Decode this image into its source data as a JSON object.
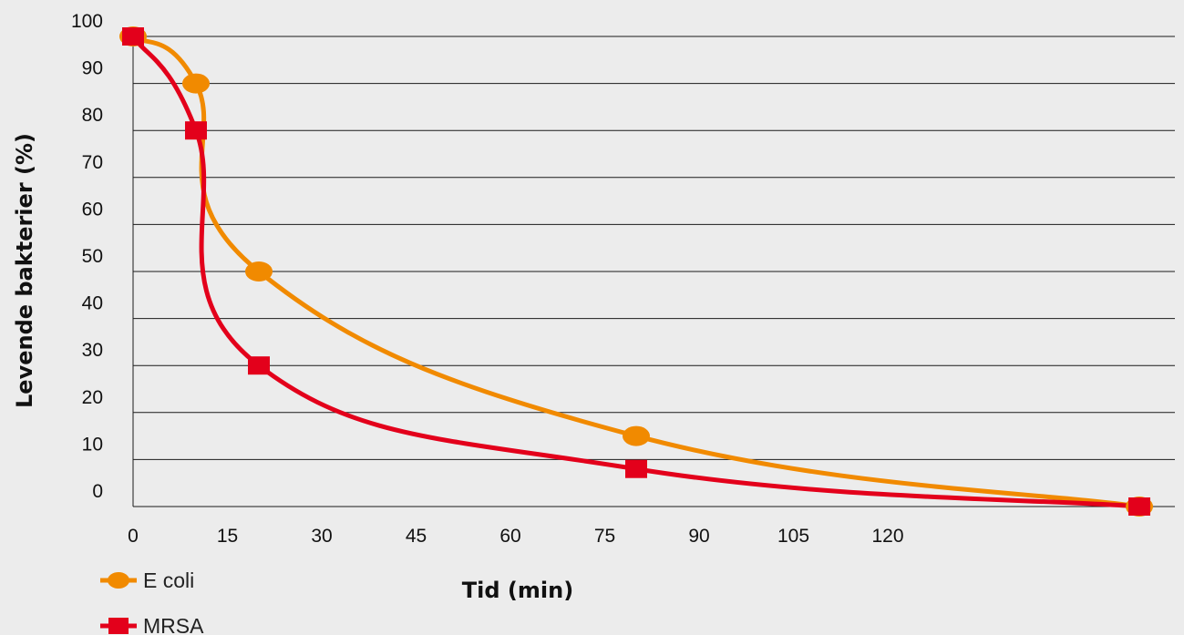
{
  "chart_data": {
    "type": "line",
    "xlabel": "Tid (min)",
    "ylabel": "Levende bakterier (%)",
    "ylim": [
      0,
      100
    ],
    "x_tick_labels": [
      "0",
      "15",
      "30",
      "45",
      "60",
      "75",
      "90",
      "105",
      "120"
    ],
    "y_tick_labels": [
      "0",
      "10",
      "20",
      "30",
      "40",
      "50",
      "60",
      "70",
      "80",
      "90",
      "100"
    ],
    "grid": "horizontal",
    "legend": "bottom-left",
    "series": [
      {
        "name": "E coli",
        "color": "#f18a00",
        "marker": "circle",
        "points": [
          [
            0,
            100
          ],
          [
            10,
            90
          ],
          [
            20,
            50
          ],
          [
            80,
            15
          ],
          [
            160,
            0
          ]
        ]
      },
      {
        "name": "MRSA",
        "color": "#e3001b",
        "marker": "square",
        "points": [
          [
            0,
            100
          ],
          [
            10,
            80
          ],
          [
            20,
            30
          ],
          [
            80,
            8
          ],
          [
            160,
            0
          ]
        ]
      }
    ]
  }
}
